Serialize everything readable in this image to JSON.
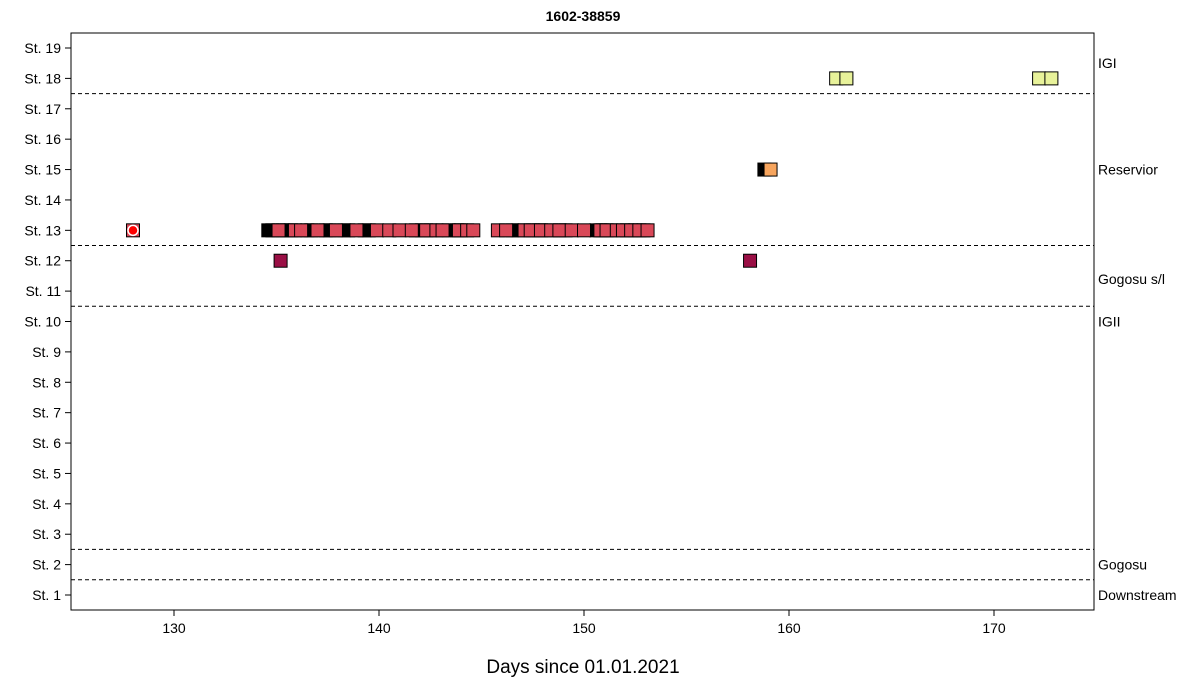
{
  "chart_data": {
    "type": "scatter",
    "title": "1602-38859",
    "xlabel": "Days since 01.01.2021",
    "ylabel": "",
    "xlim": [
      125,
      175
    ],
    "ylim": [
      0.5,
      19.5
    ],
    "grid": false,
    "x_ticks": [
      130,
      140,
      150,
      160,
      170
    ],
    "y_ticks": [
      {
        "value": 1,
        "label": "St. 1"
      },
      {
        "value": 2,
        "label": "St. 2"
      },
      {
        "value": 3,
        "label": "St. 3"
      },
      {
        "value": 4,
        "label": "St. 4"
      },
      {
        "value": 5,
        "label": "St. 5"
      },
      {
        "value": 6,
        "label": "St. 6"
      },
      {
        "value": 7,
        "label": "St. 7"
      },
      {
        "value": 8,
        "label": "St. 8"
      },
      {
        "value": 9,
        "label": "St. 9"
      },
      {
        "value": 10,
        "label": "St. 10"
      },
      {
        "value": 11,
        "label": "St. 11"
      },
      {
        "value": 12,
        "label": "St. 12"
      },
      {
        "value": 13,
        "label": "St. 13"
      },
      {
        "value": 14,
        "label": "St. 14"
      },
      {
        "value": 15,
        "label": "St. 15"
      },
      {
        "value": 16,
        "label": "St. 16"
      },
      {
        "value": 17,
        "label": "St. 17"
      },
      {
        "value": 18,
        "label": "St. 18"
      },
      {
        "value": 19,
        "label": "St. 19"
      }
    ],
    "zone_lines": [
      1.5,
      2.5,
      10.5,
      12.5,
      17.5
    ],
    "zones": [
      {
        "label": "Downstream",
        "y": 1
      },
      {
        "label": "Gogosu",
        "y": 2
      },
      {
        "label": "IGII",
        "y": 10
      },
      {
        "label": "Gogosu s/l",
        "y": 11.4
      },
      {
        "label": "Reservior",
        "y": 15
      },
      {
        "label": "IGI",
        "y": 18.5
      }
    ],
    "colors": {
      "release_marker": "#ff0000",
      "st13": "#d94858",
      "st13_dark": "#000000",
      "st12": "#9a0f45",
      "st15": "#f7a55e",
      "st15_dark": "#000000",
      "st18": "#e8f29a"
    },
    "release": {
      "x": 128.0,
      "y": 13
    },
    "series": [
      {
        "y": 13,
        "color_key": "st13",
        "x": [
          128.0
        ]
      },
      {
        "y": 13,
        "color_key": "st13_dark",
        "x": [
          134.6,
          134.8,
          135.3,
          135.5,
          135.7,
          136.5,
          136.7,
          137.4,
          137.6,
          138.3,
          138.5,
          139.3,
          139.5,
          141.8,
          142.1,
          142.5,
          143.4,
          143.8,
          144.0,
          146.5,
          146.8,
          147.5,
          147.8,
          148.1,
          148.8,
          149.1,
          150.6,
          150.9,
          151.3,
          152.1,
          152.5,
          152.9
        ]
      },
      {
        "y": 13,
        "color_key": "st13",
        "x": [
          135.1,
          135.9,
          136.2,
          137.0,
          137.9,
          138.9,
          139.9,
          140.5,
          141.0,
          141.6,
          142.3,
          142.8,
          143.1,
          143.9,
          144.3,
          144.6,
          145.8,
          146.2,
          147.1,
          147.4,
          147.9,
          148.4,
          148.8,
          149.4,
          150.0,
          150.8,
          151.1,
          151.6,
          151.9,
          152.3,
          152.7,
          153.1
        ]
      },
      {
        "y": 12,
        "color_key": "st12",
        "x": [
          135.2,
          158.1
        ]
      },
      {
        "y": 15,
        "color_key": "st15_dark",
        "x": [
          158.8
        ]
      },
      {
        "y": 15,
        "color_key": "st15",
        "x": [
          159.1
        ]
      },
      {
        "y": 18,
        "color_key": "st18",
        "x": [
          162.3,
          162.8,
          172.2,
          172.8
        ]
      }
    ]
  }
}
